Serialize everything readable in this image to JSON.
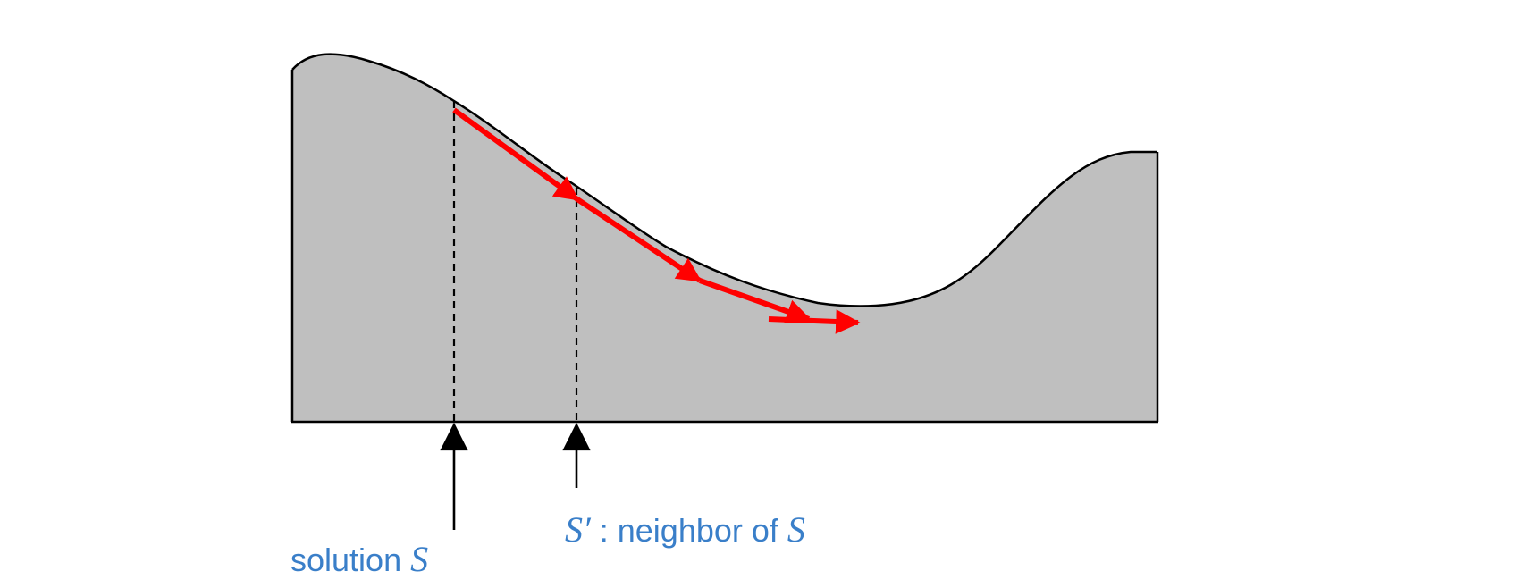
{
  "colors": {
    "landscape_fill": "#bfbfbf",
    "landscape_stroke": "#000000",
    "path_arrows": "#ff0000",
    "label_text": "#3a7fc9",
    "pointer_arrows": "#000000"
  },
  "labels": {
    "solution_text": "solution ",
    "solution_symbol": "S",
    "neighbor_symbol": "S′",
    "neighbor_text": " : neighbor of ",
    "neighbor_ref_symbol": "S"
  },
  "descent_steps": 4
}
